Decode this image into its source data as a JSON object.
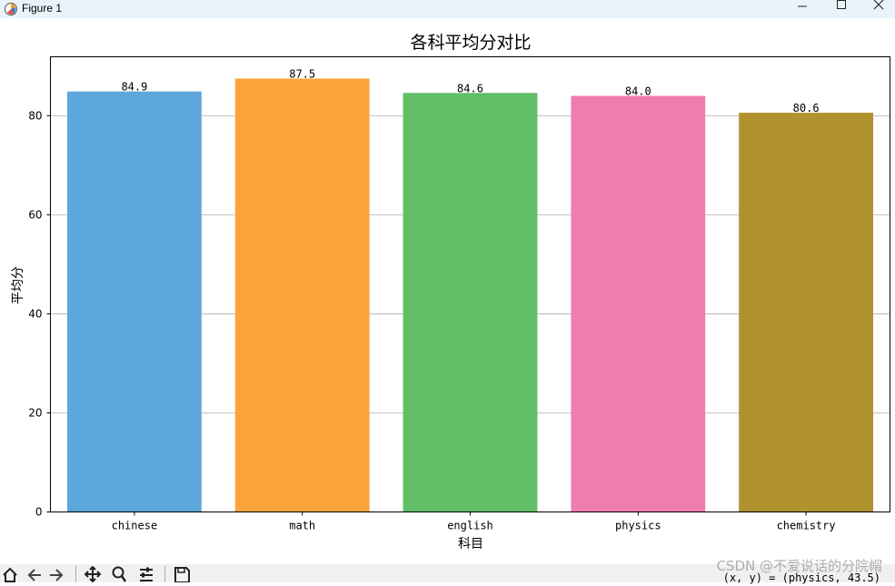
{
  "window": {
    "title": "Figure 1",
    "icon": "matplotlib-icon",
    "controls": [
      "minimize-icon",
      "maximize-icon",
      "close-icon"
    ]
  },
  "toolbar": {
    "tools": [
      "home-icon",
      "back-icon",
      "forward-icon",
      "pan-icon",
      "zoom-icon",
      "configure-subplots-icon",
      "save-icon"
    ],
    "coords_text": "(x, y) = (physics, 43.5)"
  },
  "watermark": "CSDN @不爱说话的分院帽",
  "colors": {
    "bars": [
      "#5ea7dc",
      "#fba43b",
      "#61bf68",
      "#ef7db0",
      "#b0922f"
    ],
    "grid": "#b0b0b0",
    "titlebar": "#eaf3f9",
    "toolbar": "#f0f0f0"
  },
  "chart_data": {
    "type": "bar",
    "title": "各科平均分对比",
    "xlabel": "科目",
    "ylabel": "平均分",
    "categories": [
      "chinese",
      "math",
      "english",
      "physics",
      "chemistry"
    ],
    "values": [
      84.9,
      87.5,
      84.6,
      84.0,
      80.6
    ],
    "data_labels": [
      "84.9",
      "87.5",
      "84.6",
      "84.0",
      "80.6"
    ],
    "yticks": [
      0,
      20,
      40,
      60,
      80
    ],
    "ylim": [
      0,
      91.9
    ],
    "grid": "y-axis horizontal",
    "legend": "none"
  }
}
